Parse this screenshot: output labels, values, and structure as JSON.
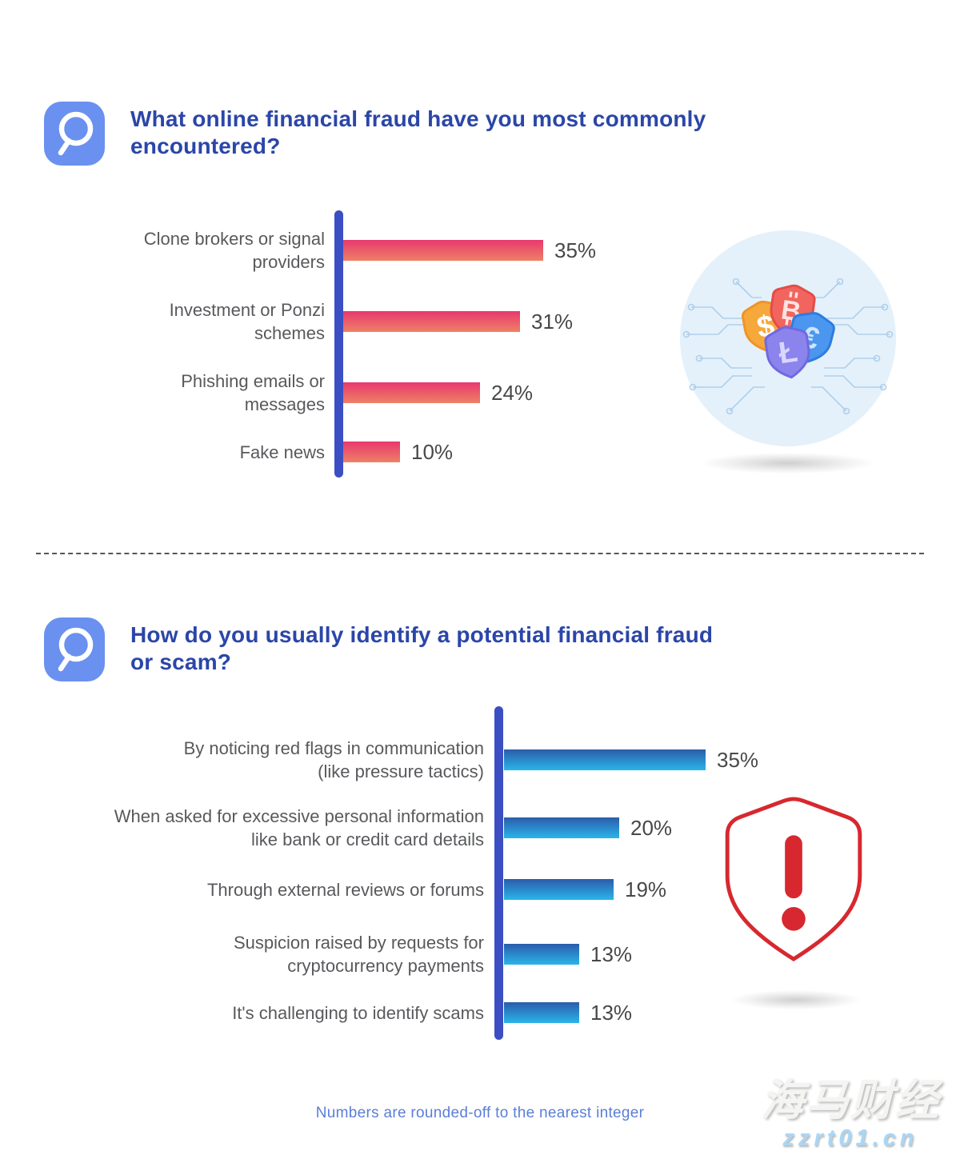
{
  "page": {
    "footer_note": "Numbers are rounded-off to the nearest integer",
    "watermark": {
      "title": "海马财经",
      "site": "zzrt01.cn"
    }
  },
  "questions": [
    {
      "lines": [
        "What online financial fraud have you most commonly",
        "encountered?"
      ]
    },
    {
      "lines": [
        "How do you usually identify a potential financial fraud",
        "or scam?"
      ]
    }
  ],
  "chart_data": [
    {
      "type": "bar",
      "orientation": "horizontal",
      "title": "What online financial fraud have you most commonly encountered?",
      "categories": [
        "Clone brokers or signal providers",
        "Investment or Ponzi schemes",
        "Phishing emails or messages",
        "Fake news"
      ],
      "values": [
        35,
        31,
        24,
        10
      ],
      "value_labels": [
        "35%",
        "31%",
        "24%",
        "10%"
      ],
      "label_lines": [
        [
          "Clone brokers or signal",
          "providers"
        ],
        [
          "Investment or Ponzi",
          "schemes"
        ],
        [
          "Phishing emails or",
          "messages"
        ],
        [
          "Fake news",
          ""
        ]
      ],
      "unit": "percent",
      "xlim": [
        0,
        40
      ],
      "grid": false,
      "legend": "none",
      "bar_color_top": "#e8386e",
      "bar_color_bottom": "#ee8165",
      "axis_color": "#3b4ec2"
    },
    {
      "type": "bar",
      "orientation": "horizontal",
      "title": "How do you usually identify a potential financial fraud or scam?",
      "categories": [
        "By noticing red flags in communication (like pressure tactics)",
        "When asked for excessive personal information like bank or credit card details",
        "Through external reviews or forums",
        "Suspicion raised by requests for cryptocurrency payments",
        "It's challenging to identify scams"
      ],
      "values": [
        35,
        20,
        19,
        13,
        13
      ],
      "value_labels": [
        "35%",
        "20%",
        "19%",
        "13%",
        "13%"
      ],
      "label_lines": [
        [
          "By noticing red flags in communication",
          "(like pressure tactics)"
        ],
        [
          "When asked for excessive personal information",
          "like bank or credit card details"
        ],
        [
          "Through external reviews or forums",
          ""
        ],
        [
          "Suspicion raised by requests for",
          "cryptocurrency payments"
        ],
        [
          "It's challenging to identify scams",
          ""
        ]
      ],
      "unit": "percent",
      "xlim": [
        0,
        40
      ],
      "grid": false,
      "legend": "none",
      "bar_color_top": "#2b5caa",
      "bar_color_bottom": "#2ab5e9",
      "axis_color": "#3b4ec2"
    }
  ],
  "illustrations": {
    "currency_shields": {
      "symbols": [
        "$",
        "₿",
        "€",
        "Ł"
      ],
      "dollar": "$",
      "bitcoin_display": "B",
      "euro": "€",
      "litecoin": "Ł"
    },
    "warning_shield": {
      "color": "#d7282f"
    }
  }
}
